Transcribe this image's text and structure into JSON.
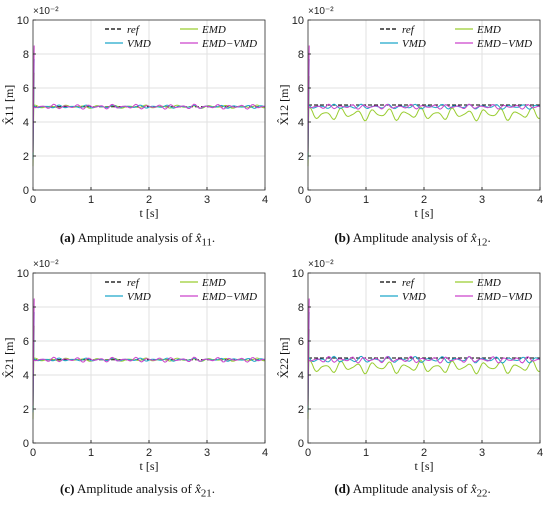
{
  "figure": {
    "panels": [
      {
        "caption_letter": "(a)",
        "caption_text": "Amplitude analysis of",
        "caption_var": "x̂",
        "caption_sub": "11",
        "caption_end": "."
      },
      {
        "caption_letter": "(b)",
        "caption_text": "Amplitude analysis of",
        "caption_var": "x̂",
        "caption_sub": "12",
        "caption_end": "."
      },
      {
        "caption_letter": "(c)",
        "caption_text": "Amplitude analysis of",
        "caption_var": "x̂",
        "caption_sub": "21",
        "caption_end": "."
      },
      {
        "caption_letter": "(d)",
        "caption_text": "Amplitude analysis of",
        "caption_var": "x̂",
        "caption_sub": "22",
        "caption_end": "."
      }
    ]
  },
  "colors": {
    "ref": "#000000",
    "emd": "#9acd32",
    "vmd": "#1ea7c9",
    "emd_vmd": "#cc44cc",
    "grid": "#e2e2e2"
  },
  "chart_data": [
    {
      "type": "line",
      "xlabel": "t [s]",
      "ylabel": "X̂11 [m]",
      "y_multiplier": "×10⁻²",
      "xlim": [
        0,
        4
      ],
      "ylim": [
        0,
        10
      ],
      "xticks": [
        0,
        1,
        2,
        3,
        4
      ],
      "yticks": [
        0,
        2,
        4,
        6,
        8,
        10
      ],
      "grid": true,
      "legend": "top-right",
      "series": [
        {
          "name": "ref",
          "steady": 4.9,
          "ripple": 0.0
        },
        {
          "name": "EMD",
          "steady": 4.9,
          "ripple": 0.1
        },
        {
          "name": "VMD",
          "steady": 4.9,
          "ripple": 0.1
        },
        {
          "name": "EMD−VMD",
          "steady": 4.9,
          "ripple": 0.15
        }
      ]
    },
    {
      "type": "line",
      "xlabel": "t [s]",
      "ylabel": "X̂12 [m]",
      "y_multiplier": "×10⁻²",
      "xlim": [
        0,
        4
      ],
      "ylim": [
        0,
        10
      ],
      "xticks": [
        0,
        1,
        2,
        3,
        4
      ],
      "yticks": [
        0,
        2,
        4,
        6,
        8,
        10
      ],
      "grid": true,
      "legend": "top-right",
      "series": [
        {
          "name": "ref",
          "steady": 5.0,
          "ripple": 0.0
        },
        {
          "name": "EMD",
          "steady": 4.7,
          "ripple": 0.4
        },
        {
          "name": "VMD",
          "steady": 4.9,
          "ripple": 0.15
        },
        {
          "name": "EMD−VMD",
          "steady": 4.9,
          "ripple": 0.15
        }
      ]
    },
    {
      "type": "line",
      "xlabel": "t [s]",
      "ylabel": "X̂21 [m]",
      "y_multiplier": "×10⁻²",
      "xlim": [
        0,
        4
      ],
      "ylim": [
        0,
        10
      ],
      "xticks": [
        0,
        1,
        2,
        3,
        4
      ],
      "yticks": [
        0,
        2,
        4,
        6,
        8,
        10
      ],
      "grid": true,
      "legend": "top-right",
      "series": [
        {
          "name": "ref",
          "steady": 4.9,
          "ripple": 0.0
        },
        {
          "name": "EMD",
          "steady": 4.9,
          "ripple": 0.1
        },
        {
          "name": "VMD",
          "steady": 4.9,
          "ripple": 0.1
        },
        {
          "name": "EMD−VMD",
          "steady": 4.9,
          "ripple": 0.15
        }
      ]
    },
    {
      "type": "line",
      "xlabel": "t [s]",
      "ylabel": "X̂22 [m]",
      "y_multiplier": "×10⁻²",
      "xlim": [
        0,
        4
      ],
      "ylim": [
        0,
        10
      ],
      "xticks": [
        0,
        1,
        2,
        3,
        4
      ],
      "yticks": [
        0,
        2,
        4,
        6,
        8,
        10
      ],
      "grid": true,
      "legend": "top-right",
      "series": [
        {
          "name": "ref",
          "steady": 5.0,
          "ripple": 0.0
        },
        {
          "name": "EMD",
          "steady": 4.7,
          "ripple": 0.4
        },
        {
          "name": "VMD",
          "steady": 4.9,
          "ripple": 0.2
        },
        {
          "name": "EMD−VMD",
          "steady": 4.9,
          "ripple": 0.2
        }
      ]
    }
  ]
}
